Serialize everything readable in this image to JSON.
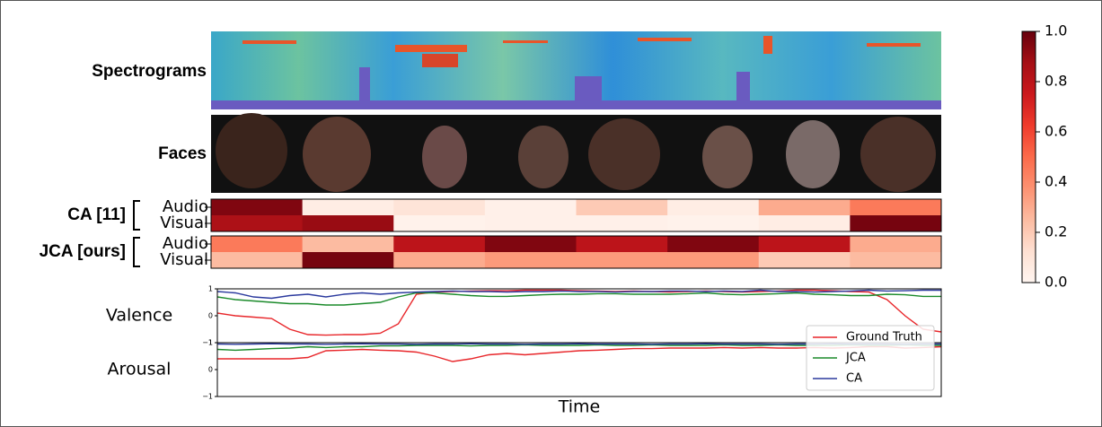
{
  "chart_data": [
    {
      "type": "heatmap",
      "panels": [
        "Spectrograms",
        "Faces"
      ],
      "groups": [
        {
          "name": "CA [11]",
          "rows": [
            {
              "name": "Audio",
              "values": [
                0.95,
                0.05,
                0.1,
                0.03,
                0.2,
                0.05,
                0.3,
                0.45
              ]
            },
            {
              "name": "Visual",
              "values": [
                0.85,
                0.9,
                0.02,
                0.03,
                0.03,
                0.02,
                0.05,
                0.97
              ]
            }
          ]
        },
        {
          "name": "JCA [ours]",
          "rows": [
            {
              "name": "Audio",
              "values": [
                0.45,
                0.25,
                0.8,
                0.95,
                0.8,
                0.95,
                0.8,
                0.3
              ]
            },
            {
              "name": "Visual",
              "values": [
                0.25,
                0.97,
                0.3,
                0.35,
                0.35,
                0.35,
                0.2,
                0.25
              ]
            }
          ]
        }
      ],
      "colormap": [
        "#fff5f0",
        "#fee0d2",
        "#fcbba1",
        "#fc9272",
        "#fb6a4a",
        "#ef3b2c",
        "#cb181d",
        "#a50f15",
        "#67000d"
      ],
      "clim": [
        0,
        1
      ],
      "cticks": [
        {
          "value": 0,
          "label": "0.0"
        },
        {
          "value": 0.2,
          "label": "0.2"
        },
        {
          "value": 0.4,
          "label": "0.4"
        },
        {
          "value": 0.6,
          "label": "0.6"
        },
        {
          "value": 0.8,
          "label": "0.8"
        },
        {
          "value": 1,
          "label": "1.0"
        }
      ]
    },
    {
      "type": "line",
      "ylabel": "Valence",
      "ylim": [
        -1,
        1
      ],
      "yticks": [
        {
          "value": -1,
          "label": "−1"
        },
        0,
        1
      ],
      "legend": "lower right",
      "series": [
        {
          "name": "Ground Truth",
          "color": "#e8262a",
          "values": [
            0.1,
            0.0,
            -0.05,
            -0.1,
            -0.5,
            -0.7,
            -0.72,
            -0.7,
            -0.7,
            -0.65,
            -0.3,
            0.8,
            0.88,
            0.9,
            0.92,
            0.93,
            0.93,
            0.95,
            0.95,
            0.95,
            0.93,
            0.92,
            0.9,
            0.92,
            0.9,
            0.88,
            0.9,
            0.92,
            0.9,
            0.88,
            0.9,
            0.92,
            0.95,
            0.95,
            0.93,
            0.9,
            0.88,
            0.6,
            0.0,
            -0.5,
            -0.6
          ]
        },
        {
          "name": "JCA",
          "color": "#1a8a2a",
          "values": [
            0.7,
            0.6,
            0.55,
            0.5,
            0.45,
            0.45,
            0.4,
            0.4,
            0.45,
            0.5,
            0.7,
            0.85,
            0.85,
            0.8,
            0.75,
            0.72,
            0.72,
            0.75,
            0.78,
            0.8,
            0.8,
            0.82,
            0.82,
            0.8,
            0.8,
            0.8,
            0.82,
            0.85,
            0.8,
            0.78,
            0.8,
            0.82,
            0.85,
            0.8,
            0.78,
            0.75,
            0.75,
            0.8,
            0.78,
            0.72,
            0.72
          ]
        },
        {
          "name": "CA",
          "color": "#2b3a9e",
          "values": [
            0.9,
            0.85,
            0.7,
            0.65,
            0.75,
            0.8,
            0.7,
            0.8,
            0.85,
            0.8,
            0.85,
            0.88,
            0.9,
            0.92,
            0.9,
            0.9,
            0.88,
            0.9,
            0.9,
            0.92,
            0.9,
            0.9,
            0.88,
            0.9,
            0.9,
            0.92,
            0.92,
            0.9,
            0.92,
            0.9,
            0.95,
            0.9,
            0.9,
            0.88,
            0.9,
            0.92,
            0.95,
            0.92,
            0.93,
            0.95,
            0.95
          ]
        }
      ]
    },
    {
      "type": "line",
      "ylabel": "Arousal",
      "xlabel": "Time",
      "ylim": [
        -1,
        1
      ],
      "yticks": [
        {
          "value": -1,
          "label": "−1"
        },
        0,
        1
      ],
      "series": [
        {
          "color": "#e8262a",
          "values": [
            0.4,
            0.4,
            0.4,
            0.4,
            0.4,
            0.45,
            0.7,
            0.72,
            0.75,
            0.72,
            0.7,
            0.65,
            0.5,
            0.3,
            0.4,
            0.55,
            0.6,
            0.55,
            0.6,
            0.65,
            0.7,
            0.72,
            0.75,
            0.78,
            0.78,
            0.8,
            0.8,
            0.8,
            0.82,
            0.8,
            0.82,
            0.8,
            0.8,
            0.82,
            0.8,
            0.82,
            0.85,
            0.85,
            0.8,
            0.82,
            0.85
          ]
        },
        {
          "color": "#1a8a2a",
          "values": [
            0.75,
            0.72,
            0.75,
            0.78,
            0.8,
            0.85,
            0.82,
            0.85,
            0.85,
            0.88,
            0.88,
            0.9,
            0.9,
            0.9,
            0.88,
            0.9,
            0.9,
            0.92,
            0.9,
            0.9,
            0.9,
            0.92,
            0.9,
            0.9,
            0.92,
            0.9,
            0.9,
            0.9,
            0.92,
            0.9,
            0.9,
            0.92,
            0.9,
            0.9,
            0.9,
            0.92,
            0.9,
            0.9,
            0.92,
            0.9,
            0.9
          ]
        },
        {
          "color": "#2b3a9e",
          "values": [
            0.95,
            0.94,
            0.95,
            0.96,
            0.95,
            0.95,
            0.94,
            0.95,
            0.96,
            0.95,
            0.95,
            0.94,
            0.95,
            0.95,
            0.96,
            0.95,
            0.95,
            0.94,
            0.95,
            0.95,
            0.96,
            0.95,
            0.95,
            0.95,
            0.94,
            0.95,
            0.95,
            0.96,
            0.95,
            0.95,
            0.95,
            0.94,
            0.95,
            0.95,
            0.96,
            0.95,
            0.95,
            0.95,
            0.94,
            0.95,
            0.95
          ]
        }
      ]
    }
  ]
}
